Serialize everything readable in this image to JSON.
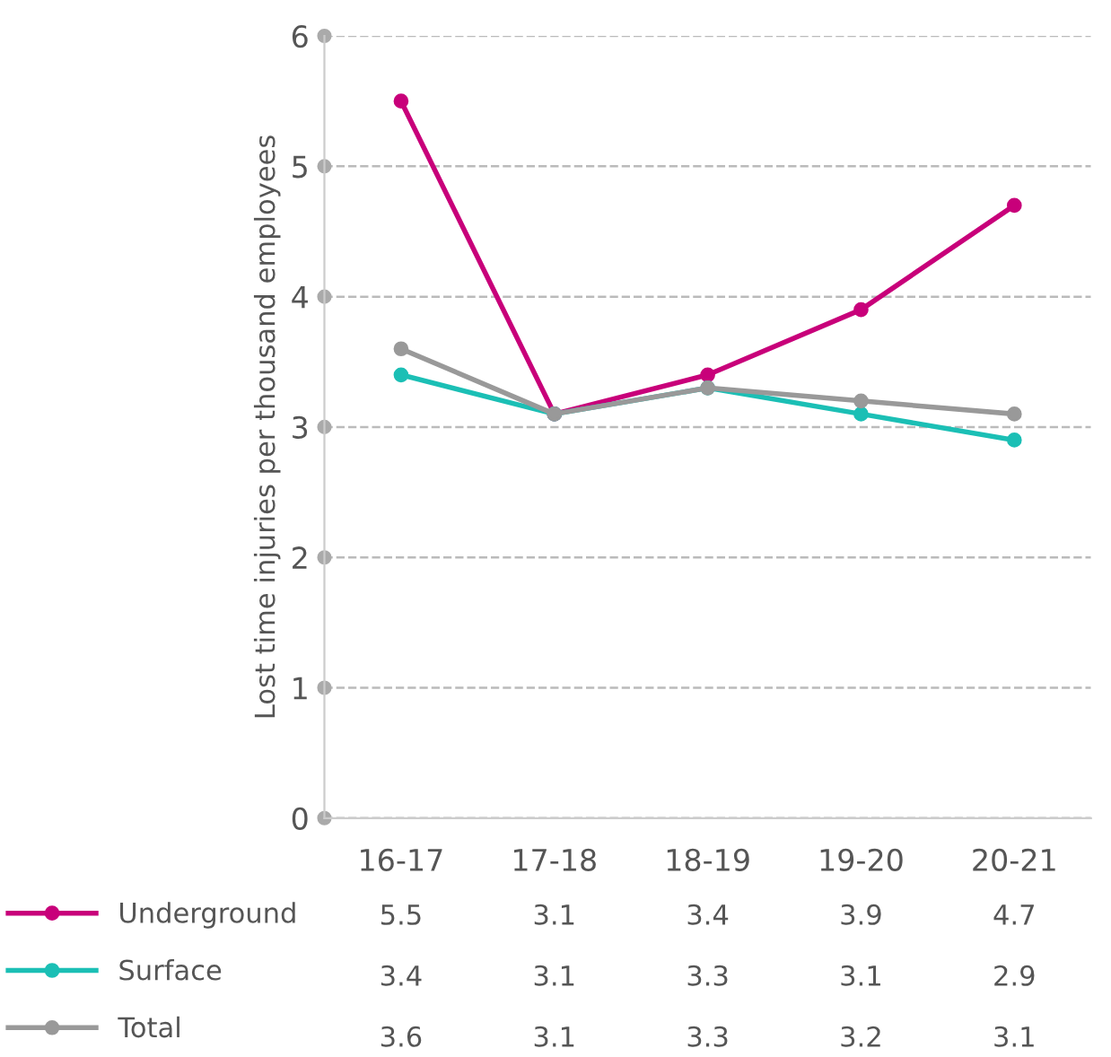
{
  "chart_data": {
    "type": "line",
    "ylabel": "Lost time injuries per thousand employees",
    "categories": [
      "16-17",
      "17-18",
      "18-19",
      "19-20",
      "20-21"
    ],
    "series": [
      {
        "name": "Underground",
        "color": "#c8007a",
        "values": [
          5.5,
          3.1,
          3.4,
          3.9,
          4.7
        ]
      },
      {
        "name": "Surface",
        "color": "#1bbfb5",
        "values": [
          3.4,
          3.1,
          3.3,
          3.1,
          2.9
        ]
      },
      {
        "name": "Total",
        "color": "#999999",
        "values": [
          3.6,
          3.1,
          3.3,
          3.2,
          3.1
        ]
      }
    ],
    "ylim": [
      0,
      6
    ],
    "yticks": [
      0,
      1,
      2,
      3,
      4,
      5,
      6
    ],
    "grid": "y",
    "marker": "circle",
    "line_style": "solid",
    "data_labels": true,
    "legend": "bottom left"
  }
}
